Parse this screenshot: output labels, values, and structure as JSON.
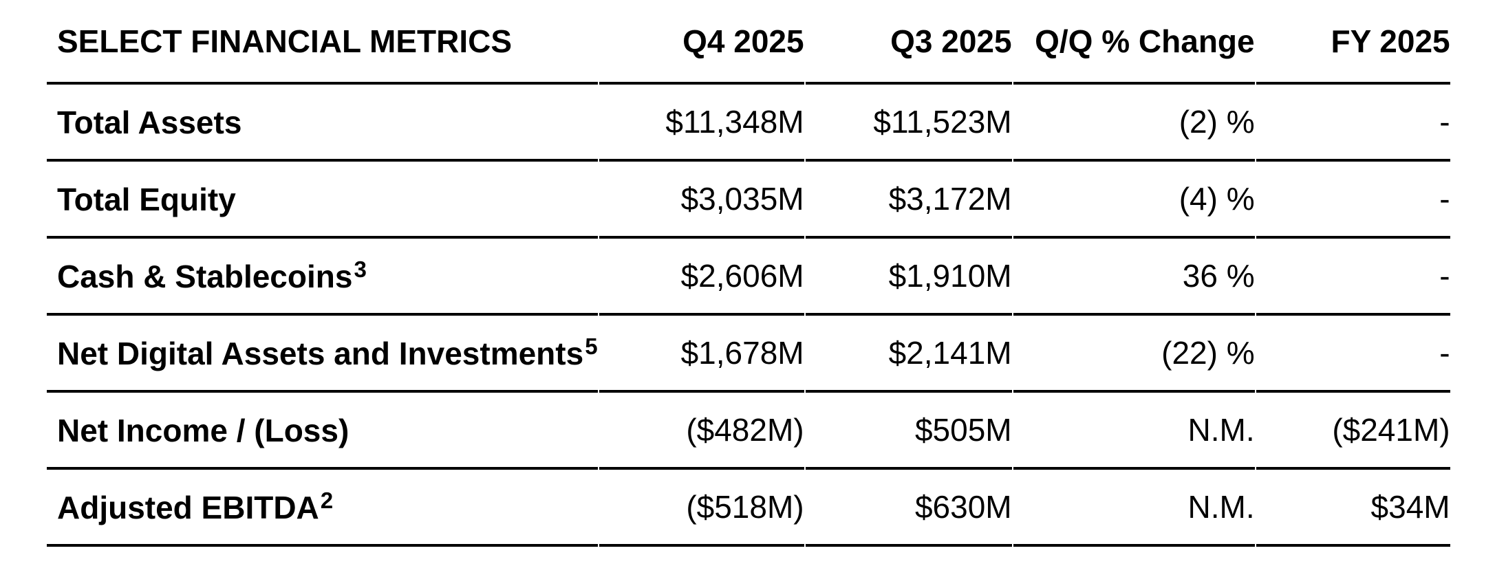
{
  "colors": {
    "background": "#ffffff",
    "text": "#000000",
    "rule": "#000000"
  },
  "table": {
    "title": "SELECT FINANCIAL METRICS",
    "columns": [
      "Q4 2025",
      "Q3 2025",
      "Q/Q % Change",
      "FY 2025"
    ],
    "rows": [
      {
        "label": "Total Assets",
        "sup": "",
        "q4": "$11,348M",
        "q3": "$11,523M",
        "qq": "(2) %",
        "fy": "-"
      },
      {
        "label": "Total Equity",
        "sup": "",
        "q4": "$3,035M",
        "q3": "$3,172M",
        "qq": "(4) %",
        "fy": "-"
      },
      {
        "label": "Cash & Stablecoins",
        "sup": "3",
        "q4": "$2,606M",
        "q3": "$1,910M",
        "qq": "36 %",
        "fy": "-"
      },
      {
        "label": "Net Digital Assets and Investments",
        "sup": "5",
        "q4": "$1,678M",
        "q3": "$2,141M",
        "qq": "(22) %",
        "fy": "-"
      },
      {
        "label": "Net Income / (Loss)",
        "sup": "",
        "q4": "($482M)",
        "q3": "$505M",
        "qq": "N.M.",
        "fy": "($241M)"
      },
      {
        "label": "Adjusted EBITDA",
        "sup": "2",
        "q4": "($518M)",
        "q3": "$630M",
        "qq": "N.M.",
        "fy": "$34M"
      }
    ]
  }
}
